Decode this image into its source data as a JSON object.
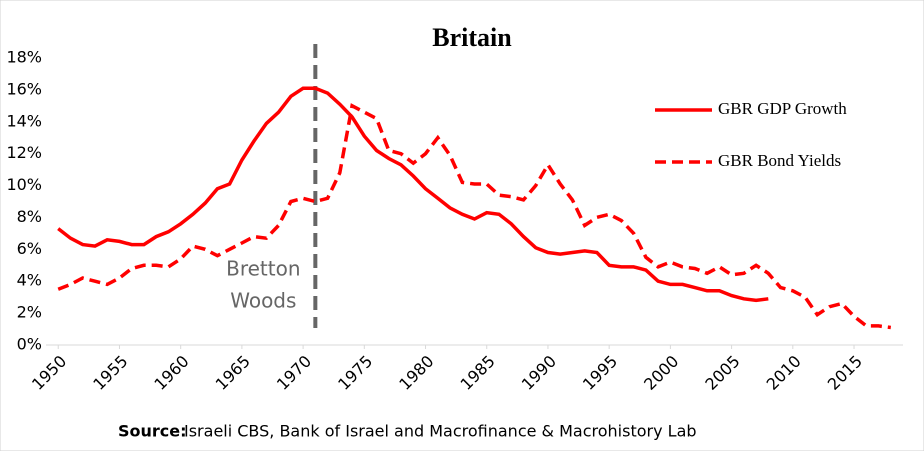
{
  "chart_data": {
    "type": "line",
    "title": "Britain",
    "x": [
      1950,
      1951,
      1952,
      1953,
      1954,
      1955,
      1956,
      1957,
      1958,
      1959,
      1960,
      1961,
      1962,
      1963,
      1964,
      1965,
      1966,
      1967,
      1968,
      1969,
      1970,
      1971,
      1972,
      1973,
      1974,
      1975,
      1976,
      1977,
      1978,
      1979,
      1980,
      1981,
      1982,
      1983,
      1984,
      1985,
      1986,
      1987,
      1988,
      1989,
      1990,
      1991,
      1992,
      1993,
      1994,
      1995,
      1996,
      1997,
      1998,
      1999,
      2000,
      2001,
      2002,
      2003,
      2004,
      2005,
      2006,
      2007,
      2008,
      2009,
      2010,
      2011,
      2012,
      2013,
      2014,
      2015,
      2016,
      2017,
      2018
    ],
    "series": [
      {
        "name": "GBR GDP Growth",
        "color": "#ff0000",
        "dash": false,
        "values": [
          7.3,
          6.7,
          6.3,
          6.2,
          6.6,
          6.5,
          6.3,
          6.3,
          6.8,
          7.1,
          7.6,
          8.2,
          8.9,
          9.8,
          10.1,
          11.6,
          12.8,
          13.9,
          14.6,
          15.6,
          16.1,
          16.1,
          15.8,
          15.1,
          14.3,
          13.1,
          12.2,
          11.7,
          11.3,
          10.6,
          9.8,
          9.2,
          8.6,
          8.2,
          7.9,
          8.3,
          8.2,
          7.6,
          6.8,
          6.1,
          5.8,
          5.7,
          5.8,
          5.9,
          5.8,
          5.0,
          4.9,
          4.9,
          4.7,
          4.0,
          3.8,
          3.8,
          3.6,
          3.4,
          3.4,
          3.1,
          2.9,
          2.8,
          2.9,
          null,
          null,
          null,
          null,
          null,
          null,
          null,
          null,
          null,
          null
        ]
      },
      {
        "name": "GBR Bond Yields",
        "color": "#ff0000",
        "dash": true,
        "values": [
          3.5,
          3.8,
          4.2,
          4.0,
          3.8,
          4.2,
          4.8,
          5.0,
          5.0,
          4.9,
          5.4,
          6.2,
          6.0,
          5.6,
          6.0,
          6.4,
          6.8,
          6.7,
          7.5,
          9.0,
          9.2,
          9.0,
          9.2,
          10.8,
          15.0,
          14.6,
          14.2,
          12.2,
          12.0,
          11.4,
          12.0,
          13.0,
          11.9,
          10.2,
          10.1,
          10.1,
          9.4,
          9.3,
          9.1,
          10.0,
          11.3,
          10.1,
          9.1,
          7.5,
          8.0,
          8.2,
          7.8,
          7.0,
          5.5,
          4.9,
          5.2,
          4.9,
          4.8,
          4.5,
          4.9,
          4.4,
          4.5,
          5.0,
          4.5,
          3.6,
          3.4,
          3.0,
          1.9,
          2.4,
          2.6,
          1.8,
          1.2,
          1.2,
          1.1
        ]
      }
    ],
    "xlim": [
      1949,
      2019
    ],
    "xticks": [
      1950,
      1955,
      1960,
      1965,
      1970,
      1975,
      1980,
      1985,
      1990,
      1995,
      2000,
      2005,
      2010,
      2015
    ],
    "ylim": [
      0,
      18
    ],
    "yticks": [
      {
        "value": 0,
        "label": "0%"
      },
      {
        "value": 2,
        "label": "2%"
      },
      {
        "value": 4,
        "label": "4%"
      },
      {
        "value": 6,
        "label": "6%"
      },
      {
        "value": 8,
        "label": "8%"
      },
      {
        "value": 10,
        "label": "10%"
      },
      {
        "value": 12,
        "label": "12%"
      },
      {
        "value": 14,
        "label": "14%"
      },
      {
        "value": 16,
        "label": "16%"
      },
      {
        "value": 18,
        "label": "18%"
      }
    ],
    "annotation": {
      "lines": [
        "Bretton",
        "Woods"
      ],
      "x": 1971,
      "color": "#666666"
    },
    "legend": "right",
    "source_label": "Source:",
    "source": "Israeli CBS, Bank of Israel and Macrofinance & Macrohistory Lab"
  }
}
